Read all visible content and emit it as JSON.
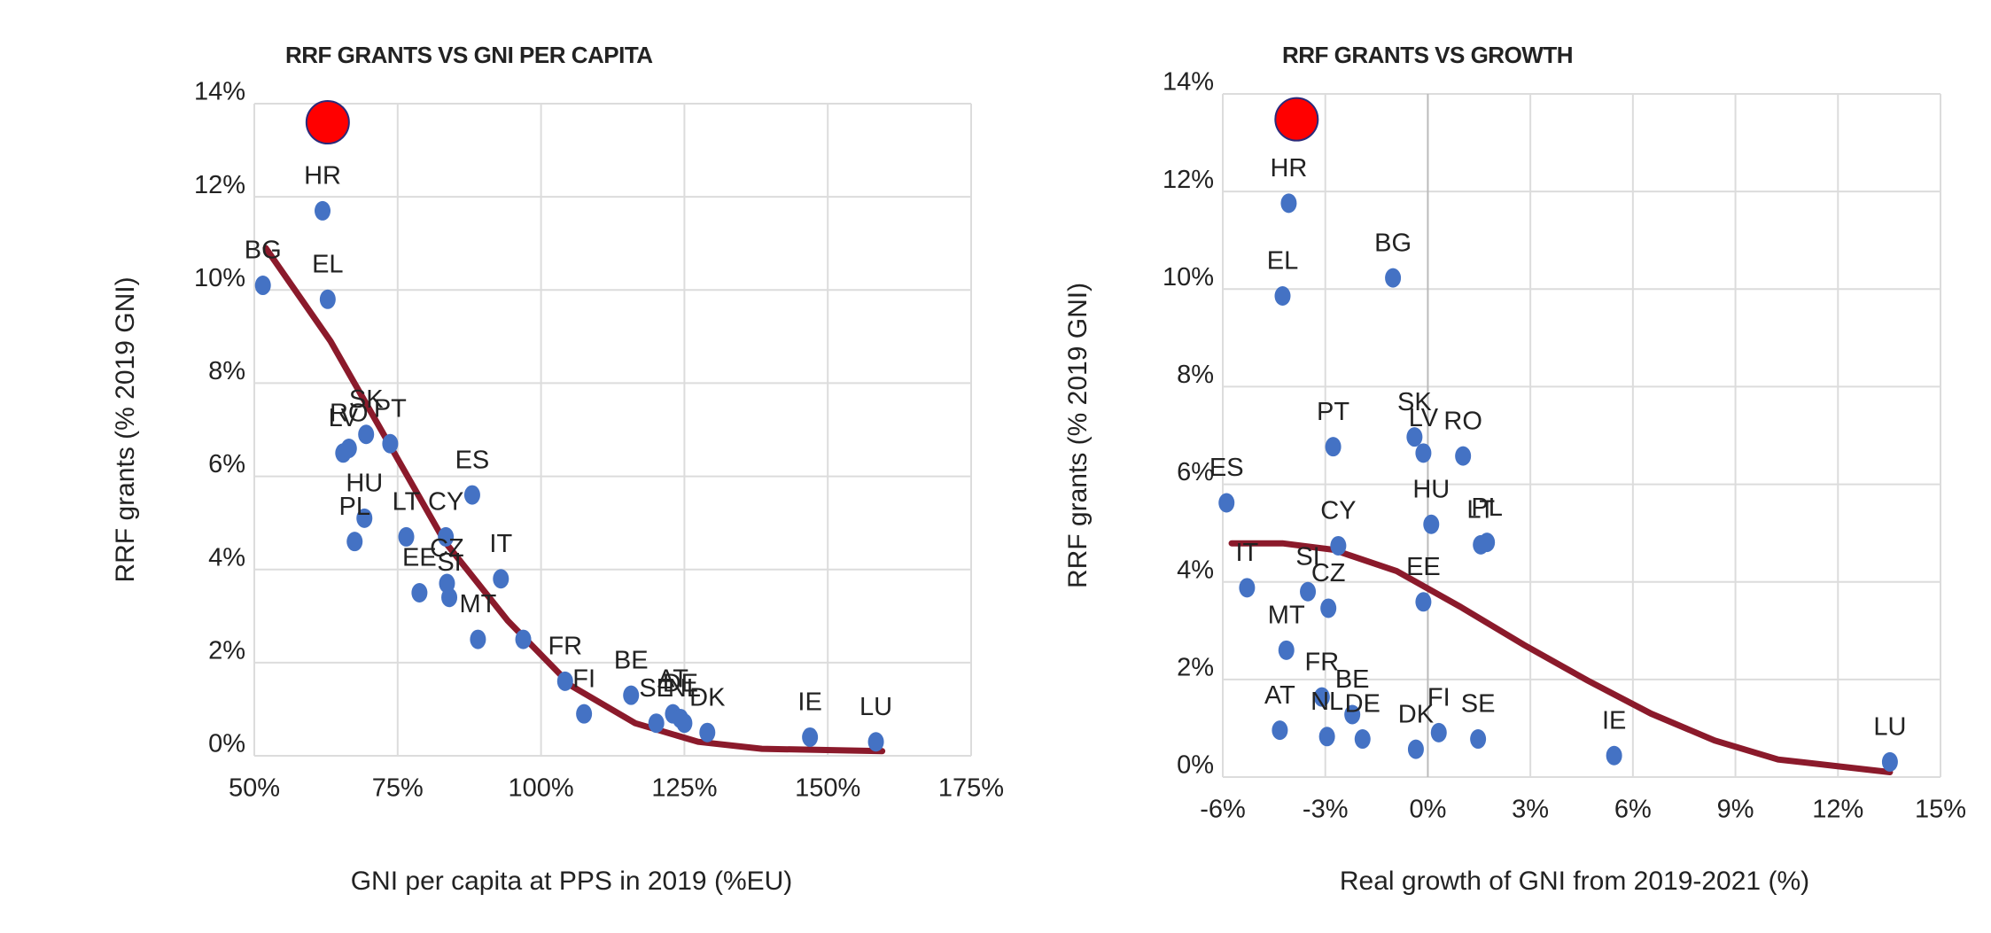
{
  "chart_data": [
    {
      "type": "scatter",
      "title": "RRF GRANTS VS GNI PER CAPITA",
      "x_label": "GNI per capita at PPS in 2019 (%EU)",
      "y_label": "RRF grants (% 2019 GNI)",
      "color": "#4472c4",
      "grid": true,
      "labels": [
        "BG",
        "HR",
        "EL",
        "LV",
        "SK",
        "RO",
        "PT",
        "HU",
        "PL",
        "LT",
        "CY",
        "ES",
        "CZ",
        "SI",
        "IT",
        "EE",
        "MT",
        null,
        "FR",
        "FI",
        "BE",
        "SE",
        "AT",
        "DE",
        "NL",
        "DK",
        "IE",
        "LU"
      ],
      "x": [
        51.5,
        61.9,
        62.8,
        65.5,
        69.5,
        66.5,
        73.7,
        69.2,
        67.5,
        76.5,
        83.4,
        88,
        83.6,
        84,
        93,
        78.8,
        89,
        96.9,
        104.2,
        107.5,
        115.7,
        120.1,
        123,
        124.3,
        125,
        129,
        146.9,
        158.4
      ],
      "values": [
        10.1,
        11.7,
        9.8,
        6.5,
        6.9,
        6.6,
        6.7,
        5.1,
        4.6,
        4.7,
        4.7,
        5.6,
        3.7,
        3.4,
        3.8,
        3.5,
        2.5,
        2.5,
        1.6,
        0.9,
        1.3,
        0.7,
        0.9,
        0.8,
        0.7,
        0.5,
        0.4,
        0.3
      ],
      "trend": {
        "color": "#8b1a2b",
        "x": [
          52,
          63.3,
          72.1,
          83.2,
          94.2,
          105.3,
          116.4,
          127.4,
          138.5,
          159.5
        ],
        "y": [
          10.9,
          8.9,
          7.0,
          4.6,
          2.9,
          1.5,
          0.7,
          0.3,
          0.15,
          0.1
        ]
      },
      "highlight": {
        "color": "#ff0000",
        "x": 62.8,
        "y": 13.6
      },
      "xlim": [
        50,
        175
      ],
      "xticks": [
        {
          "value": 50,
          "label": "50%"
        },
        {
          "value": 75,
          "label": "75%"
        },
        {
          "value": 100,
          "label": "100%"
        },
        {
          "value": 125,
          "label": "125%"
        },
        {
          "value": 150,
          "label": "150%"
        },
        {
          "value": 175,
          "label": "175%"
        }
      ],
      "ylim": [
        0,
        14
      ],
      "yticks": [
        {
          "value": 0,
          "label": "0%"
        },
        {
          "value": 2,
          "label": "2%"
        },
        {
          "value": 4,
          "label": "4%"
        },
        {
          "value": 6,
          "label": "6%"
        },
        {
          "value": 8,
          "label": "8%"
        },
        {
          "value": 10,
          "label": "10%"
        },
        {
          "value": 12,
          "label": "12%"
        },
        {
          "value": 14,
          "label": "14%"
        }
      ]
    },
    {
      "type": "scatter",
      "title": "RRF GRANTS VS GROWTH",
      "x_label": "Real growth of GNI from 2019-2021 (%)",
      "y_label": "RRF grants (% 2019 GNI)",
      "color": "#4472c4",
      "grid": true,
      "labels": [
        "HR",
        "EL",
        "BG",
        "LV",
        "SK",
        "RO",
        "PT",
        "ES",
        "HU",
        "LT",
        "PL",
        "SI",
        "CY",
        "CZ",
        "IT",
        "EE",
        "MT",
        "FR",
        "BE",
        "NL",
        "AT",
        "DE",
        "DK",
        "FI",
        "SE",
        "IE",
        "LU"
      ],
      "x": [
        -4.07,
        -4.25,
        -1.02,
        -0.13,
        -0.39,
        1.03,
        -2.77,
        -5.89,
        0.1,
        1.55,
        1.73,
        -3.51,
        -2.62,
        -2.91,
        -5.29,
        -0.13,
        -4.14,
        -3.1,
        -2.21,
        -2.95,
        -4.33,
        -1.91,
        -0.35,
        0.32,
        1.47,
        5.45,
        13.52
      ],
      "values": [
        11.76,
        9.86,
        10.23,
        6.64,
        6.97,
        6.58,
        6.77,
        5.62,
        5.18,
        4.76,
        4.81,
        3.8,
        4.74,
        3.46,
        3.88,
        3.59,
        2.6,
        1.64,
        1.28,
        0.83,
        0.96,
        0.78,
        0.57,
        0.91,
        0.78,
        0.44,
        0.31
      ],
      "trend": {
        "color": "#8b1a2b",
        "x": [
          -5.74,
          -4.25,
          -2.77,
          -0.91,
          0.95,
          2.81,
          4.67,
          6.53,
          8.39,
          10.25,
          13.52
        ],
        "y": [
          4.79,
          4.79,
          4.66,
          4.22,
          3.49,
          2.71,
          1.98,
          1.3,
          0.75,
          0.36,
          0.1
        ]
      },
      "highlight": {
        "color": "#ff0000",
        "x": -3.84,
        "y": 13.48
      },
      "xlim": [
        -6,
        15
      ],
      "xticks": [
        {
          "value": -6,
          "label": "-6%"
        },
        {
          "value": -3,
          "label": "-3%"
        },
        {
          "value": 0,
          "label": "0%"
        },
        {
          "value": 3,
          "label": "3%"
        },
        {
          "value": 6,
          "label": "6%"
        },
        {
          "value": 9,
          "label": "9%"
        },
        {
          "value": 12,
          "label": "12%"
        },
        {
          "value": 15,
          "label": "15%"
        }
      ],
      "ylim": [
        0,
        14
      ],
      "yticks": [
        {
          "value": 0,
          "label": "0%"
        },
        {
          "value": 2,
          "label": "2%"
        },
        {
          "value": 4,
          "label": "4%"
        },
        {
          "value": 6,
          "label": "6%"
        },
        {
          "value": 8,
          "label": "8%"
        },
        {
          "value": 10,
          "label": "10%"
        },
        {
          "value": 12,
          "label": "12%"
        },
        {
          "value": 14,
          "label": "14%"
        }
      ]
    }
  ]
}
